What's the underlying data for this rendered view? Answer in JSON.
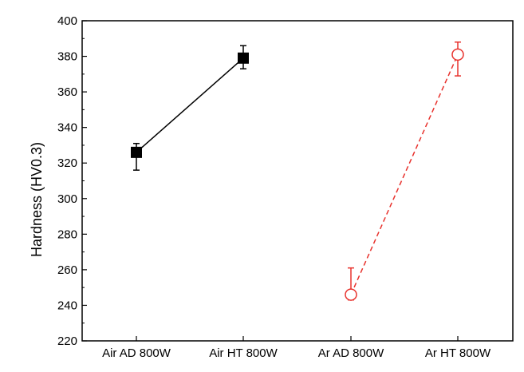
{
  "chart_data": {
    "type": "line",
    "ylabel": "Hardness (HV0.3)",
    "xlabel": "",
    "ylim": [
      220,
      400
    ],
    "y_ticks": [
      220,
      240,
      260,
      280,
      300,
      320,
      340,
      360,
      380,
      400
    ],
    "y_tick_labels": [
      "220",
      "240",
      "260",
      "280",
      "300",
      "320",
      "340",
      "360",
      "380",
      "400"
    ],
    "categories": [
      "Air AD 800W",
      "Air HT 800W",
      "Ar AD 800W",
      "Ar HT 800W"
    ],
    "grid": false,
    "series": [
      {
        "marker": "filled-square",
        "line_style": "solid",
        "color": "#000000",
        "points": [
          {
            "category": "Air AD 800W",
            "y": 326,
            "err_low": 316,
            "err_high": 331
          },
          {
            "category": "Air HT 800W",
            "y": 379,
            "err_low": 373,
            "err_high": 386
          }
        ]
      },
      {
        "marker": "open-circle",
        "line_style": "dashed",
        "color": "#e8322d",
        "points": [
          {
            "category": "Ar AD 800W",
            "y": 246,
            "err_low": 243,
            "err_high": 261
          },
          {
            "category": "Ar HT 800W",
            "y": 381,
            "err_low": 369,
            "err_high": 388
          }
        ]
      }
    ]
  }
}
